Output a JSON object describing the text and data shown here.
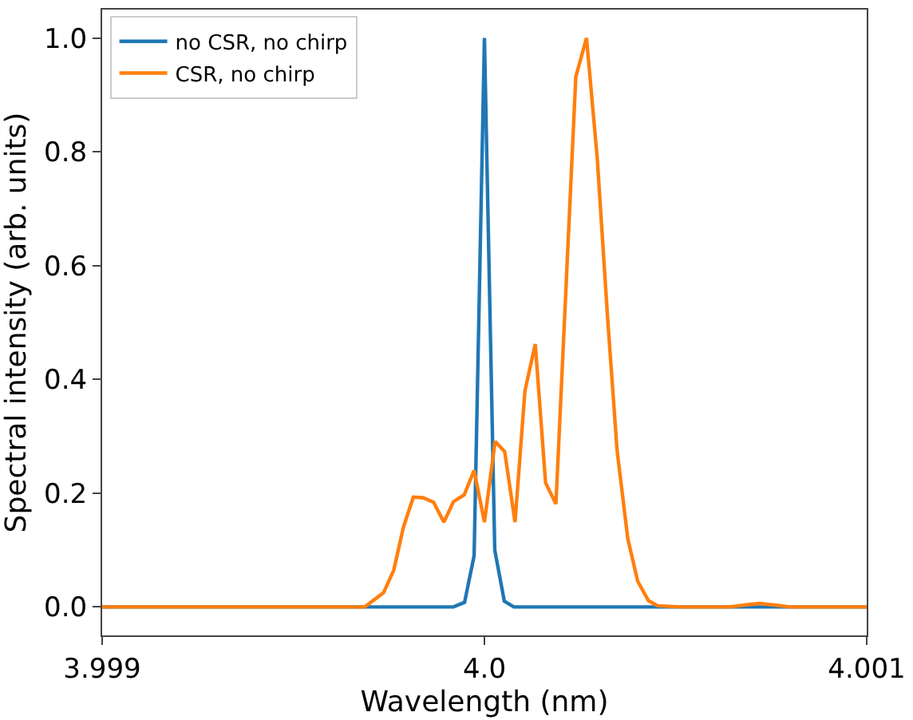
{
  "chart_data": {
    "type": "line",
    "xlabel": "Wavelength (nm)",
    "ylabel": "Spectral intensity (arb. units)",
    "xlim": [
      3.999,
      4.001
    ],
    "xticks": [
      3.999,
      {
        "value": 4.0,
        "label": "4.0"
      },
      4.001
    ],
    "ylim": [
      -0.05,
      1.05
    ],
    "yticks": [
      {
        "value": 0,
        "label": "0.0"
      },
      0.2,
      0.4,
      0.6,
      0.8,
      {
        "value": 1,
        "label": "1.0"
      }
    ],
    "legend": "top left",
    "marker": "none",
    "line_style": "solid",
    "series": [
      {
        "name": "no CSR, no chirp",
        "color": "#1f77b4",
        "x": [
          3.999,
          3.999919,
          3.999948,
          3.999973,
          4.0,
          4.000027,
          4.000052,
          4.000077,
          4.001
        ],
        "values": [
          0,
          0,
          0.008,
          0.09,
          1.0,
          0.1,
          0.01,
          0,
          0
        ]
      },
      {
        "name": "CSR, no chirp",
        "color": "#ff7f0e",
        "x": [
          3.999,
          3.9995,
          3.999687,
          3.999736,
          3.999763,
          3.999788,
          3.999814,
          3.999839,
          3.999867,
          3.999894,
          3.999919,
          3.999947,
          3.999973,
          4.0,
          4.000028,
          4.000053,
          4.00008,
          4.000106,
          4.000133,
          4.00016,
          4.000187,
          4.000214,
          4.000239,
          4.000267,
          4.000295,
          4.000322,
          4.000347,
          4.000375,
          4.000401,
          4.000429,
          4.000453,
          4.000516,
          4.00064,
          4.000689,
          4.000718,
          4.000764,
          4.0008,
          4.001
        ],
        "values": [
          0,
          0,
          0,
          0.025,
          0.065,
          0.14,
          0.193,
          0.192,
          0.184,
          0.149,
          0.185,
          0.197,
          0.24,
          0.149,
          0.291,
          0.273,
          0.149,
          0.38,
          0.462,
          0.218,
          0.181,
          0.57,
          0.932,
          1.0,
          0.79,
          0.51,
          0.275,
          0.12,
          0.045,
          0.011,
          0.002,
          0,
          0,
          0.004,
          0.006,
          0.003,
          0,
          0
        ]
      }
    ]
  }
}
